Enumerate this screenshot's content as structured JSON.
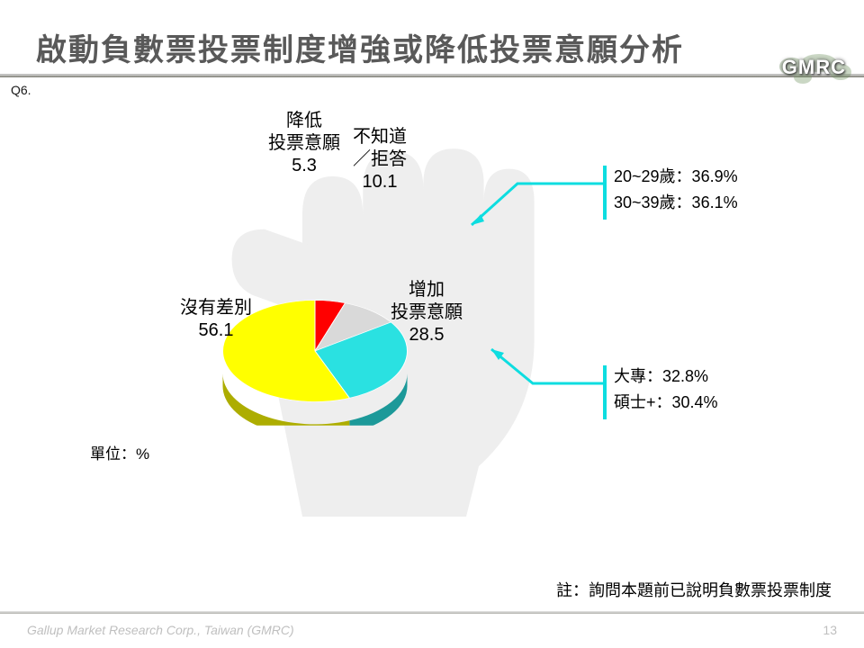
{
  "title": "啟動負數票投票制度增強或降低投票意願分析",
  "questionLabel": "Q6.",
  "logo": "GMRC",
  "unitLabel": "單位：%",
  "footnote": "註：詢問本題前已說明負數票投票制度",
  "footerLeft": "Gallup Market Research Corp., Taiwan (GMRC)",
  "pageNum": "13",
  "chart": {
    "type": "pie",
    "tilt": 0.55,
    "depth": 28,
    "background_color": "#ffffff",
    "start_angle_deg": -90,
    "slices": [
      {
        "key": "decrease",
        "label_l1": "降低",
        "label_l2": "投票意願",
        "value": 5.3,
        "color": "#ff0000"
      },
      {
        "key": "dontknow",
        "label_l1": "不知道",
        "label_l2": "／拒答",
        "value": 10.1,
        "color": "#d9d9d9"
      },
      {
        "key": "increase",
        "label_l1": "增加",
        "label_l2": "投票意願",
        "value": 28.5,
        "color": "#2ae1e1"
      },
      {
        "key": "nodiff",
        "label_l1": "沒有差別",
        "label_l2": "",
        "value": 56.1,
        "color": "#ffff00"
      }
    ],
    "slice_border": "#ffffff",
    "label_fontsize": 20,
    "label_color": "#000000"
  },
  "callouts": [
    {
      "lines": [
        "20~29歲：36.9%",
        "30~39歲：36.1%"
      ]
    },
    {
      "lines": [
        "大專：32.8%",
        "碩士+：30.4%"
      ]
    }
  ]
}
